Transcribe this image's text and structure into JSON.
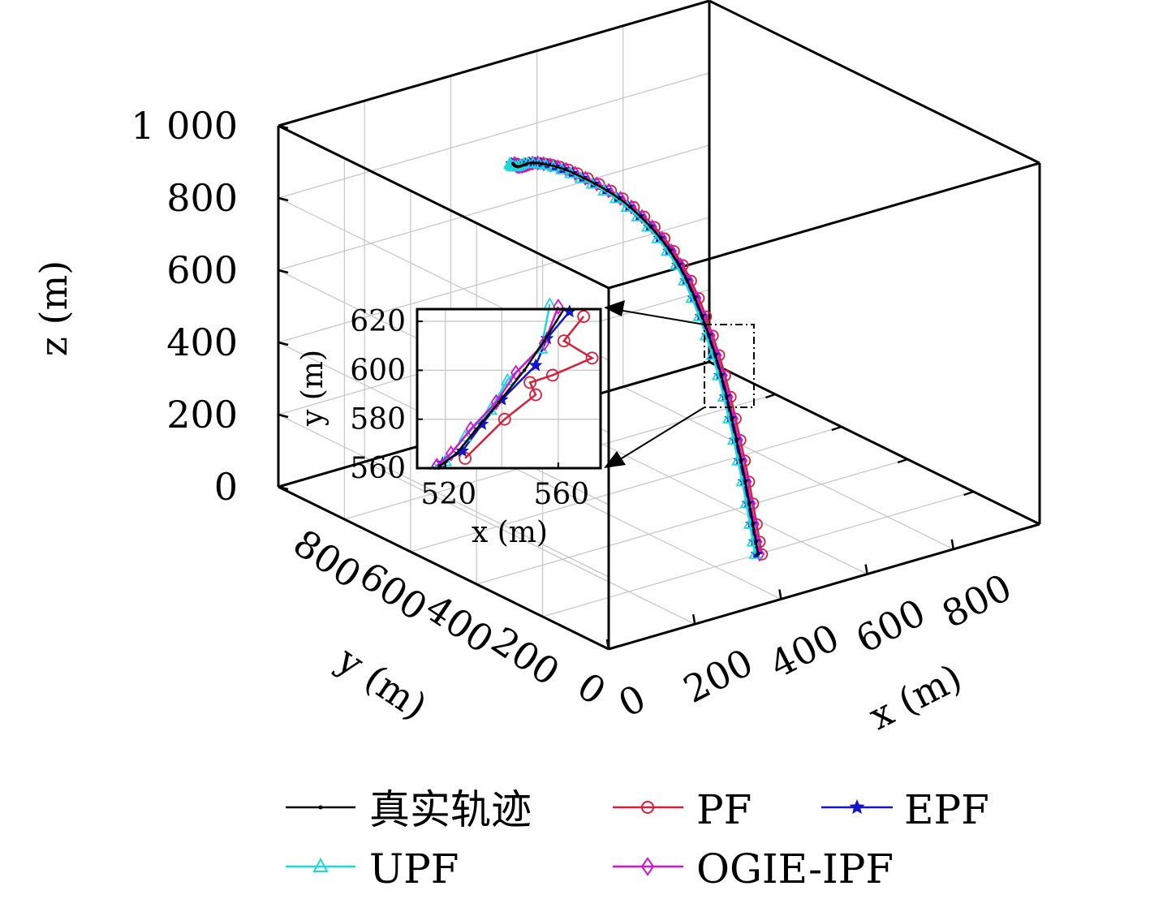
{
  "chart_data": {
    "type": "line3d",
    "projection": "3d-perspective-box",
    "axes": {
      "x": {
        "label": "x (m)",
        "ticks": [
          0,
          200,
          400,
          600,
          800
        ],
        "tick_labels": [
          "0",
          "200",
          "400",
          "600",
          "800"
        ],
        "range": [
          0,
          1000
        ]
      },
      "y": {
        "label": "y (m)",
        "ticks": [
          800,
          600,
          400,
          200,
          0
        ],
        "tick_labels": [
          "800",
          "600",
          "400",
          "200",
          "0"
        ],
        "range": [
          0,
          1000
        ]
      },
      "z": {
        "label": "z (m)",
        "ticks": [
          0,
          200,
          400,
          600,
          800,
          1000
        ],
        "tick_labels": [
          "0",
          "200",
          "400",
          "600",
          "800",
          "1 000"
        ],
        "range": [
          0,
          1000
        ]
      }
    },
    "grid": true,
    "legend": {
      "placement": "bottom",
      "entries": [
        {
          "name": "真实轨迹",
          "color": "#000000",
          "marker": "dot"
        },
        {
          "name": "PF",
          "color": "#d6203a",
          "marker": "circle"
        },
        {
          "name": "EPF",
          "color": "#1414c8",
          "marker": "star"
        },
        {
          "name": "UPF",
          "color": "#1fd8d8",
          "marker": "triangle"
        },
        {
          "name": "OGIE-IPF",
          "color": "#d014d0",
          "marker": "diamond"
        }
      ]
    },
    "series": [
      {
        "name": "真实轨迹",
        "x": [
          500,
          560,
          600,
          600,
          540,
          440,
          330,
          250,
          230
        ],
        "y": [
          200,
          330,
          460,
          570,
          640,
          680,
          650,
          600,
          590
        ],
        "z": [
          0,
          180,
          400,
          600,
          750,
          860,
          940,
          980,
          1000
        ]
      },
      {
        "name": "PF",
        "x": [
          505,
          565,
          605,
          605,
          545,
          445,
          335,
          255,
          235
        ],
        "y": [
          195,
          325,
          455,
          565,
          635,
          675,
          645,
          595,
          585
        ],
        "z": [
          0,
          180,
          400,
          600,
          750,
          860,
          940,
          980,
          1000
        ]
      },
      {
        "name": "EPF",
        "x": [
          498,
          558,
          598,
          598,
          538,
          438,
          328,
          248,
          228
        ],
        "y": [
          202,
          332,
          462,
          572,
          642,
          682,
          652,
          602,
          592
        ],
        "z": [
          0,
          180,
          400,
          600,
          750,
          860,
          940,
          980,
          1000
        ]
      },
      {
        "name": "UPF",
        "x": [
          496,
          556,
          596,
          596,
          536,
          436,
          326,
          246,
          226
        ],
        "y": [
          204,
          334,
          464,
          574,
          644,
          684,
          654,
          604,
          594
        ],
        "z": [
          0,
          180,
          400,
          600,
          750,
          860,
          940,
          980,
          1000
        ]
      },
      {
        "name": "OGIE-IPF",
        "x": [
          502,
          562,
          602,
          602,
          542,
          442,
          332,
          252,
          232
        ],
        "y": [
          198,
          328,
          458,
          568,
          638,
          678,
          648,
          598,
          588
        ],
        "z": [
          0,
          180,
          400,
          600,
          750,
          860,
          940,
          980,
          1000
        ]
      }
    ],
    "inset": {
      "xlabel": "x (m)",
      "ylabel": "y (m)",
      "xlim": [
        510,
        575
      ],
      "ylim": [
        560,
        625
      ],
      "xticks": [
        520,
        560
      ],
      "yticks": [
        560,
        580,
        600,
        620
      ],
      "series": [
        {
          "name": "PF",
          "x": [
            527,
            541,
            552,
            550,
            558,
            572,
            562,
            569
          ],
          "y": [
            564,
            580,
            590,
            595,
            598,
            605,
            612,
            622
          ]
        },
        {
          "name": "EPF",
          "x": [
            519,
            526,
            533,
            540,
            552,
            556,
            564
          ],
          "y": [
            562,
            567,
            578,
            588,
            602,
            613,
            624
          ]
        },
        {
          "name": "UPF",
          "x": [
            516,
            520,
            527,
            536,
            542,
            554,
            557
          ],
          "y": [
            560,
            563,
            573,
            584,
            596,
            609,
            627
          ]
        },
        {
          "name": "OGIE-IPF",
          "x": [
            517,
            522,
            529,
            538,
            545,
            555,
            560
          ],
          "y": [
            561,
            566,
            576,
            587,
            599,
            611,
            626
          ]
        },
        {
          "name": "真实轨迹",
          "x": [
            518,
            524,
            531,
            539,
            548,
            555,
            562
          ],
          "y": [
            561,
            566,
            576,
            587,
            600,
            612,
            625
          ]
        }
      ]
    }
  }
}
